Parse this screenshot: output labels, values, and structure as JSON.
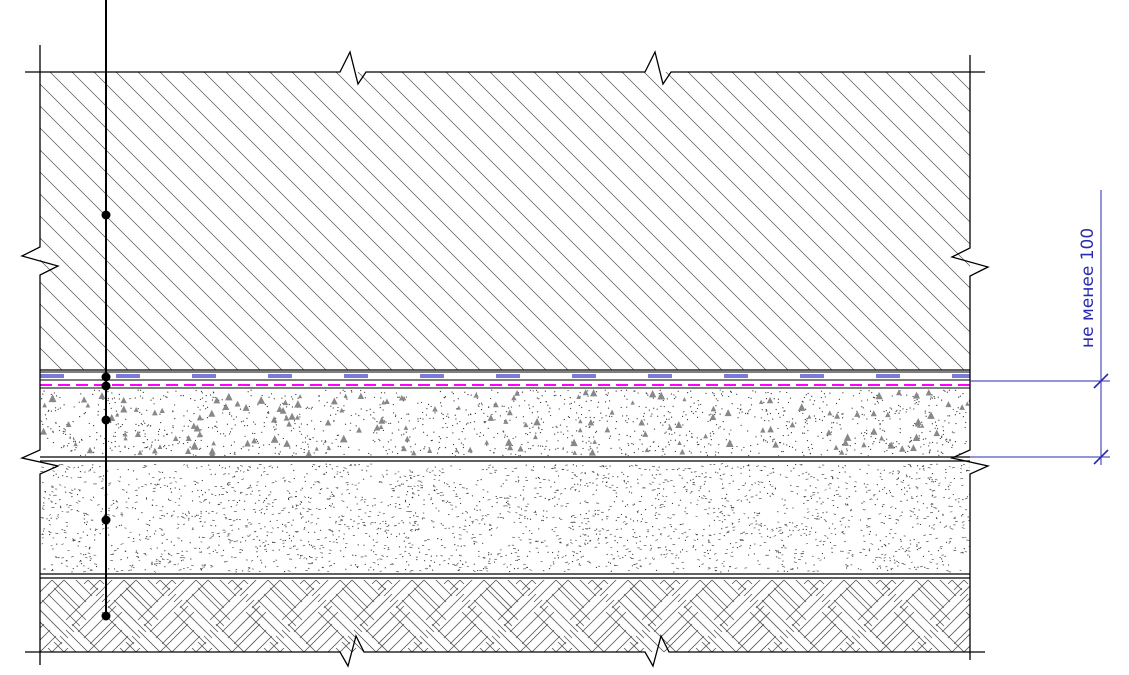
{
  "dimension": {
    "label": "не менее 100",
    "color": "#2a2ab0"
  },
  "colors": {
    "line": "#000000",
    "hatch": "#555555",
    "membrane": "#7a7ad8",
    "separator": "#ff00ff",
    "stipple": "#333333"
  },
  "layers": [
    {
      "id": "concrete-slab",
      "pattern": "diagonal-hatch"
    },
    {
      "id": "waterproof-membrane",
      "pattern": "dashed-band"
    },
    {
      "id": "separation-layer",
      "pattern": "dashed-line"
    },
    {
      "id": "concrete-screed",
      "pattern": "aggregate-stipple"
    },
    {
      "id": "sand-layer",
      "pattern": "dense-stipple"
    },
    {
      "id": "soil",
      "pattern": "earth-cross-hatch"
    }
  ],
  "leader": {
    "callout_points": 7,
    "icon": "leader-line-icon"
  }
}
